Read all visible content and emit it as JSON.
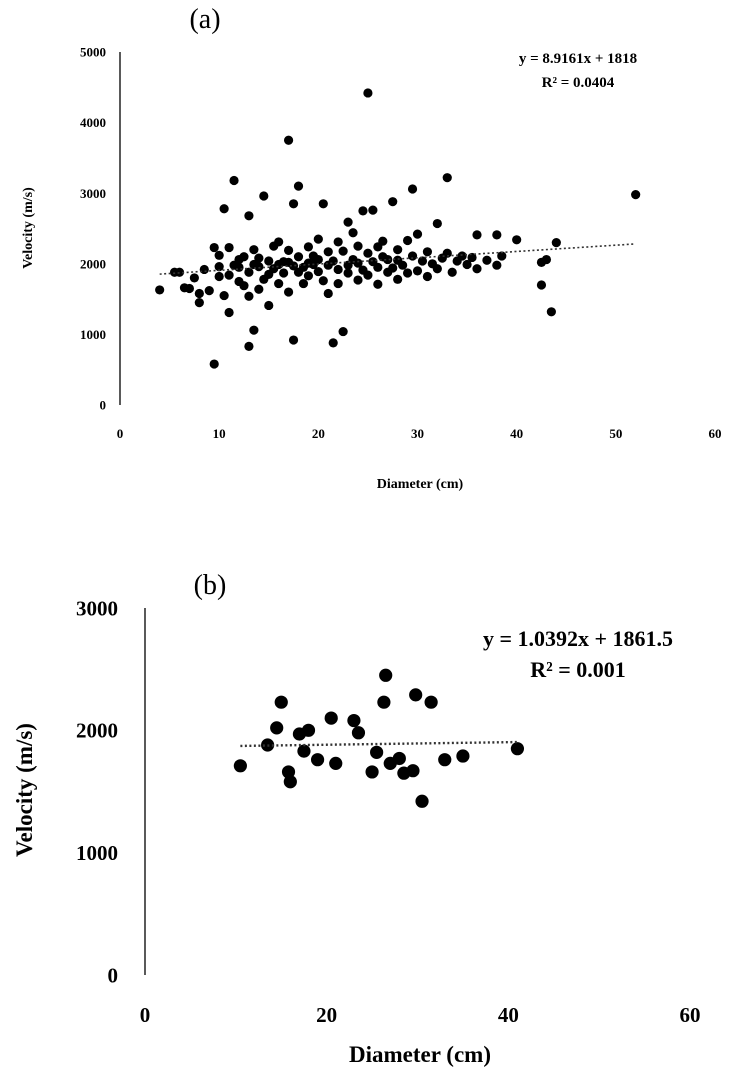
{
  "chart_data": [
    {
      "type": "scatter",
      "panel_label": "(a)",
      "xlabel": "Diameter (cm)",
      "ylabel": "Velocity (m/s)",
      "xlim": [
        0,
        60
      ],
      "ylim": [
        0,
        5000
      ],
      "xticks": [
        "0",
        "10",
        "20",
        "30",
        "40",
        "50",
        "60"
      ],
      "yticks": [
        "0",
        "1000",
        "2000",
        "3000",
        "4000",
        "5000"
      ],
      "grid": false,
      "equation": "y = 8.9161x + 1818",
      "r_squared": "R² = 0.0404",
      "trendline": {
        "slope": 8.9161,
        "intercept": 1818,
        "x_range": [
          4,
          52
        ]
      },
      "points": [
        [
          4,
          1630
        ],
        [
          5.5,
          1880
        ],
        [
          6,
          1880
        ],
        [
          6.5,
          1660
        ],
        [
          7,
          1650
        ],
        [
          7.5,
          1800
        ],
        [
          8,
          1450
        ],
        [
          8,
          1580
        ],
        [
          8.5,
          1920
        ],
        [
          9,
          1620
        ],
        [
          9.5,
          580
        ],
        [
          9.5,
          2230
        ],
        [
          10,
          1820
        ],
        [
          10,
          1960
        ],
        [
          10,
          2120
        ],
        [
          10.5,
          2780
        ],
        [
          10.5,
          1550
        ],
        [
          11,
          1310
        ],
        [
          11,
          2230
        ],
        [
          11,
          1840
        ],
        [
          11.5,
          3180
        ],
        [
          11.5,
          1980
        ],
        [
          12,
          1950
        ],
        [
          12,
          2060
        ],
        [
          12,
          1750
        ],
        [
          12.5,
          1690
        ],
        [
          12.5,
          2100
        ],
        [
          13,
          830
        ],
        [
          13,
          2680
        ],
        [
          13,
          1880
        ],
        [
          13,
          1540
        ],
        [
          13.5,
          1060
        ],
        [
          13.5,
          1990
        ],
        [
          13.5,
          2200
        ],
        [
          14,
          1960
        ],
        [
          14,
          1640
        ],
        [
          14,
          2080
        ],
        [
          14.5,
          2960
        ],
        [
          14.5,
          1780
        ],
        [
          15,
          2040
        ],
        [
          15,
          1410
        ],
        [
          15,
          1850
        ],
        [
          15.5,
          2250
        ],
        [
          15.5,
          1930
        ],
        [
          16,
          2310
        ],
        [
          16,
          1990
        ],
        [
          16,
          1720
        ],
        [
          16.5,
          2030
        ],
        [
          16.5,
          1870
        ],
        [
          17,
          3750
        ],
        [
          17,
          2020
        ],
        [
          17,
          1600
        ],
        [
          17,
          2190
        ],
        [
          17.5,
          2850
        ],
        [
          17.5,
          920
        ],
        [
          17.5,
          1970
        ],
        [
          18,
          3100
        ],
        [
          18,
          1880
        ],
        [
          18,
          2100
        ],
        [
          18.5,
          1950
        ],
        [
          18.5,
          1720
        ],
        [
          19,
          2010
        ],
        [
          19,
          2240
        ],
        [
          19,
          1830
        ],
        [
          19.5,
          1990
        ],
        [
          19.5,
          2110
        ],
        [
          20,
          1890
        ],
        [
          20,
          2060
        ],
        [
          20,
          2350
        ],
        [
          20.5,
          2850
        ],
        [
          20.5,
          1760
        ],
        [
          21,
          1980
        ],
        [
          21,
          2170
        ],
        [
          21,
          1580
        ],
        [
          21.5,
          880
        ],
        [
          21.5,
          2040
        ],
        [
          22,
          1920
        ],
        [
          22,
          2310
        ],
        [
          22,
          1720
        ],
        [
          22.5,
          1040
        ],
        [
          22.5,
          2180
        ],
        [
          23,
          2590
        ],
        [
          23,
          1980
        ],
        [
          23,
          1870
        ],
        [
          23.5,
          2060
        ],
        [
          23.5,
          2440
        ],
        [
          24,
          2010
        ],
        [
          24,
          1770
        ],
        [
          24,
          2250
        ],
        [
          24.5,
          2750
        ],
        [
          24.5,
          1910
        ],
        [
          25,
          4420
        ],
        [
          25,
          2150
        ],
        [
          25,
          1840
        ],
        [
          25.5,
          2760
        ],
        [
          25.5,
          2030
        ],
        [
          26,
          2240
        ],
        [
          26,
          1950
        ],
        [
          26,
          1710
        ],
        [
          26.5,
          2100
        ],
        [
          26.5,
          2320
        ],
        [
          27,
          1880
        ],
        [
          27,
          2060
        ],
        [
          27.5,
          2880
        ],
        [
          27.5,
          1940
        ],
        [
          28,
          2200
        ],
        [
          28,
          1780
        ],
        [
          28,
          2050
        ],
        [
          28.5,
          1980
        ],
        [
          29,
          2330
        ],
        [
          29,
          1870
        ],
        [
          29.5,
          3060
        ],
        [
          29.5,
          2110
        ],
        [
          30,
          2420
        ],
        [
          30,
          1900
        ],
        [
          30.5,
          2040
        ],
        [
          31,
          2170
        ],
        [
          31,
          1820
        ],
        [
          31.5,
          2000
        ],
        [
          32,
          2570
        ],
        [
          32,
          1930
        ],
        [
          32.5,
          2080
        ],
        [
          33,
          3220
        ],
        [
          33,
          2150
        ],
        [
          33.5,
          1880
        ],
        [
          34,
          2040
        ],
        [
          34.5,
          2110
        ],
        [
          35,
          1990
        ],
        [
          35.5,
          2090
        ],
        [
          36,
          2410
        ],
        [
          36,
          1930
        ],
        [
          37,
          2050
        ],
        [
          38,
          1980
        ],
        [
          38,
          2410
        ],
        [
          38.5,
          2110
        ],
        [
          40,
          2340
        ],
        [
          42.5,
          1700
        ],
        [
          42.5,
          2020
        ],
        [
          43,
          2060
        ],
        [
          43.5,
          1320
        ],
        [
          44,
          2300
        ],
        [
          52,
          2980
        ]
      ]
    },
    {
      "type": "scatter",
      "panel_label": "(b)",
      "xlabel": "Diameter (cm)",
      "ylabel": "Velocity (m/s)",
      "xlim": [
        0,
        60
      ],
      "ylim": [
        0,
        3000
      ],
      "xticks": [
        "0",
        "20",
        "40",
        "60"
      ],
      "yticks": [
        "0",
        "1000",
        "2000",
        "3000"
      ],
      "grid": false,
      "equation": "y = 1.0392x + 1861.5",
      "r_squared": "R² = 0.001",
      "trendline": {
        "slope": 1.0392,
        "intercept": 1861.5,
        "x_range": [
          10.5,
          41
        ]
      },
      "points": [
        [
          10.5,
          1710
        ],
        [
          13.5,
          1880
        ],
        [
          14.5,
          2020
        ],
        [
          15,
          2230
        ],
        [
          15.8,
          1660
        ],
        [
          16,
          1580
        ],
        [
          17,
          1970
        ],
        [
          17.5,
          1830
        ],
        [
          18,
          2000
        ],
        [
          19,
          1760
        ],
        [
          20.5,
          2100
        ],
        [
          21,
          1730
        ],
        [
          23,
          2080
        ],
        [
          23.5,
          1980
        ],
        [
          25,
          1660
        ],
        [
          25.5,
          1820
        ],
        [
          26.3,
          2230
        ],
        [
          26.5,
          2450
        ],
        [
          27,
          1730
        ],
        [
          28,
          1770
        ],
        [
          28.5,
          1650
        ],
        [
          29.5,
          1670
        ],
        [
          29.8,
          2290
        ],
        [
          30.5,
          1420
        ],
        [
          31.5,
          2230
        ],
        [
          33,
          1760
        ],
        [
          35,
          1790
        ],
        [
          41,
          1850
        ]
      ]
    }
  ]
}
